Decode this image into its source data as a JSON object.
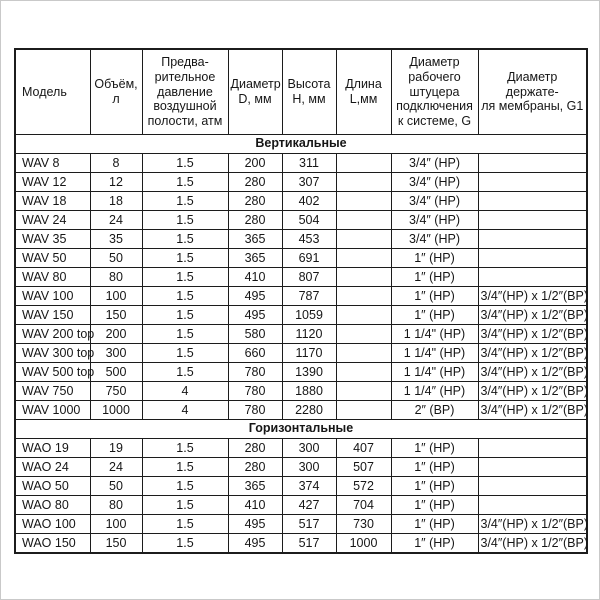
{
  "page": {
    "background_color": "#ffffff",
    "frame_border_color": "#c9c9c9",
    "table_border_color": "#1c1c1c",
    "text_color": "#161616"
  },
  "table": {
    "columns": [
      "Модель",
      "Объём,\nл",
      "Предва-\nрительное\nдавление\nвоздушной\nполости, атм",
      "Диаметр\nD, мм",
      "Высота\nH, мм",
      "Длина\nL,мм",
      "Диаметр\nрабочего\nштуцера\nподключения\nк системе, G",
      "Диаметр держате-\nля мембраны, G1"
    ],
    "sections": [
      {
        "title": "Вертикальные",
        "rows": [
          [
            "WAV 8",
            "8",
            "1.5",
            "200",
            "311",
            "",
            "3/4″ (HP)",
            ""
          ],
          [
            "WAV 12",
            "12",
            "1.5",
            "280",
            "307",
            "",
            "3/4″ (HP)",
            ""
          ],
          [
            "WAV 18",
            "18",
            "1.5",
            "280",
            "402",
            "",
            "3/4″ (HP)",
            ""
          ],
          [
            "WAV 24",
            "24",
            "1.5",
            "280",
            "504",
            "",
            "3/4″ (HP)",
            ""
          ],
          [
            "WAV 35",
            "35",
            "1.5",
            "365",
            "453",
            "",
            "3/4″ (HP)",
            ""
          ],
          [
            "WAV 50",
            "50",
            "1.5",
            "365",
            "691",
            "",
            "1″ (HP)",
            ""
          ],
          [
            "WAV 80",
            "80",
            "1.5",
            "410",
            "807",
            "",
            "1″ (HP)",
            ""
          ],
          [
            "WAV 100",
            "100",
            "1.5",
            "495",
            "787",
            "",
            "1″ (HP)",
            "3/4″(HP) x 1/2″(BP)"
          ],
          [
            "WAV 150",
            "150",
            "1.5",
            "495",
            "1059",
            "",
            "1″ (HP)",
            "3/4″(HP) x 1/2″(BP)"
          ],
          [
            "WAV 200 top",
            "200",
            "1.5",
            "580",
            "1120",
            "",
            "1 1/4\" (HP)",
            "3/4″(HP) x 1/2″(BP)"
          ],
          [
            "WAV 300 top",
            "300",
            "1.5",
            "660",
            "1170",
            "",
            "1 1/4\" (HP)",
            "3/4″(HP) x 1/2″(BP)"
          ],
          [
            "WAV 500 top",
            "500",
            "1.5",
            "780",
            "1390",
            "",
            "1 1/4\" (HP)",
            "3/4″(HP) x 1/2″(BP)"
          ],
          [
            "WAV 750",
            "750",
            "4",
            "780",
            "1880",
            "",
            "1 1/4″ (HP)",
            "3/4″(HP) x 1/2″(BP)"
          ],
          [
            "WAV 1000",
            "1000",
            "4",
            "780",
            "2280",
            "",
            "2″ (BP)",
            "3/4″(HP) x 1/2″(BP)"
          ]
        ]
      },
      {
        "title": "Горизонтальные",
        "rows": [
          [
            "WAO 19",
            "19",
            "1.5",
            "280",
            "300",
            "407",
            "1″ (HP)",
            ""
          ],
          [
            "WAO 24",
            "24",
            "1.5",
            "280",
            "300",
            "507",
            "1″ (HP)",
            ""
          ],
          [
            "WAO 50",
            "50",
            "1.5",
            "365",
            "374",
            "572",
            "1″ (HP)",
            ""
          ],
          [
            "WAO 80",
            "80",
            "1.5",
            "410",
            "427",
            "704",
            "1″ (HP)",
            ""
          ],
          [
            "WAO 100",
            "100",
            "1.5",
            "495",
            "517",
            "730",
            "1″ (HP)",
            "3/4″(HP) x 1/2″(BP)"
          ],
          [
            "WAO 150",
            "150",
            "1.5",
            "495",
            "517",
            "1000",
            "1″ (HP)",
            "3/4″(HP) x 1/2″(BP)"
          ]
        ]
      }
    ]
  }
}
